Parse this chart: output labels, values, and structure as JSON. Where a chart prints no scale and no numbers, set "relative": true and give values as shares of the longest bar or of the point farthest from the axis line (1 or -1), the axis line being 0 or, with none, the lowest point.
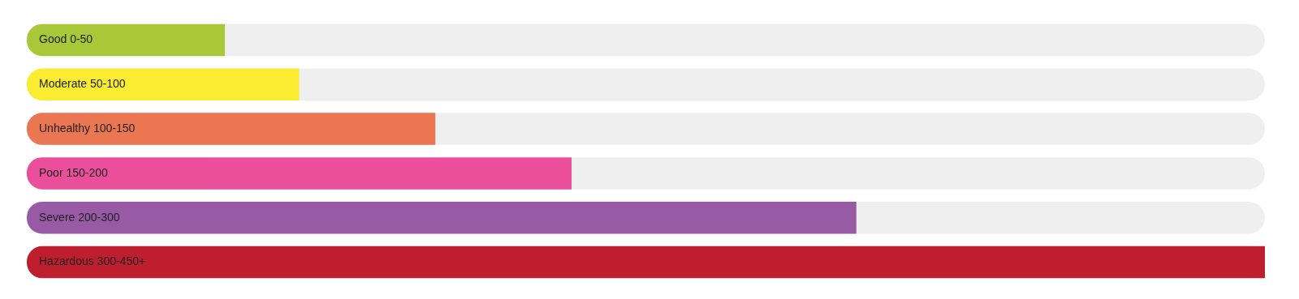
{
  "chart_data": {
    "type": "bar",
    "orientation": "horizontal",
    "relative": true,
    "categories": [
      "Good 0-50",
      "Moderate 50-100",
      "Unhealthy 100-150",
      "Poor 150-200",
      "Severe 200-300",
      "Hazardous 300-450+"
    ],
    "values": [
      0.16,
      0.22,
      0.33,
      0.44,
      0.67,
      1
    ],
    "colors": [
      "#a8c83a",
      "#f9ec31",
      "#eb7652",
      "#eb4f9c",
      "#985aa5",
      "#be1e2d"
    ]
  }
}
